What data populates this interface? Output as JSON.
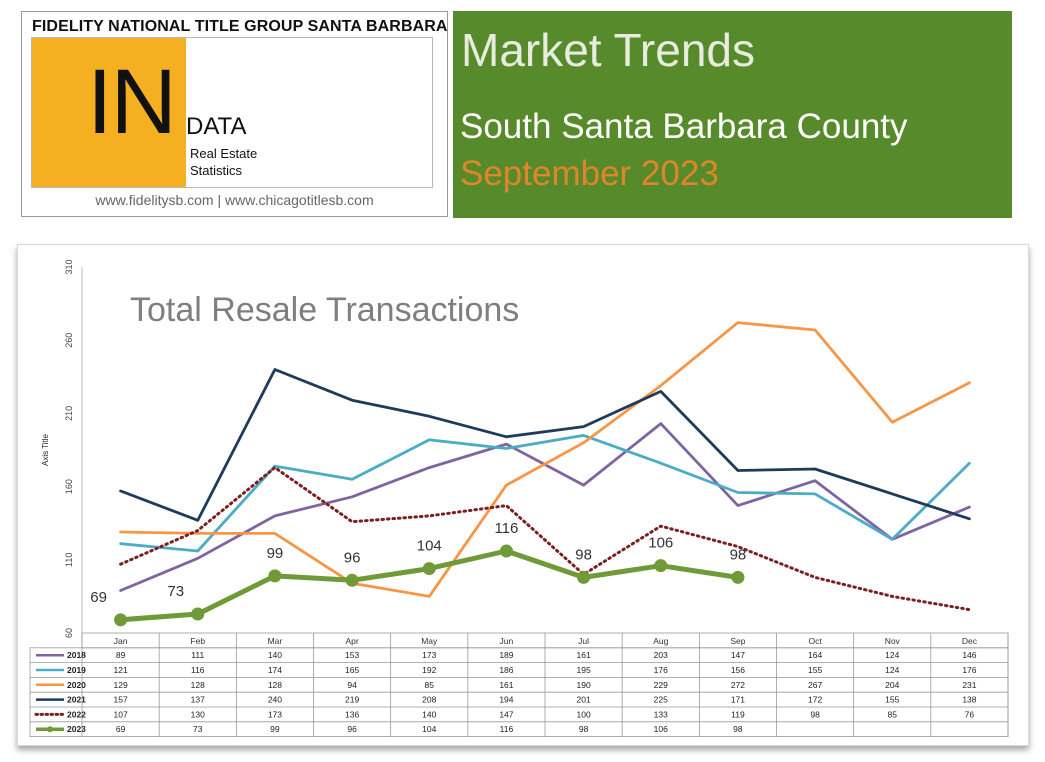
{
  "header": {
    "company": "FIDELITY NATIONAL TITLE GROUP SANTA BARBARA",
    "logo_in": "IN",
    "logo_data": "DATA",
    "logo_sub1": "Real Estate",
    "logo_sub2": "Statistics",
    "urls": "www.fidelitysb.com | www.chicagotitlesb.com",
    "title": "Market Trends",
    "region": "South Santa Barbara County",
    "period": "September 2023"
  },
  "colors": {
    "yellow": "#f5b021",
    "green": "#578a2a",
    "orange_text": "#e0862a"
  },
  "chart_data": {
    "type": "line",
    "title": "Total Resale Transactions",
    "ylabel": "Axis Title",
    "xlabel": "",
    "ylim": [
      60,
      310
    ],
    "yticks": [
      60,
      110,
      160,
      210,
      260,
      310
    ],
    "categories": [
      "Jan",
      "Feb",
      "Mar",
      "Apr",
      "May",
      "Jun",
      "Jul",
      "Aug",
      "Sep",
      "Oct",
      "Nov",
      "Dec"
    ],
    "grid": false,
    "legend": "data-table-below",
    "series": [
      {
        "name": "2018",
        "color": "#8064a2",
        "style": "solid",
        "values": [
          89,
          111,
          140,
          153,
          173,
          189,
          161,
          203,
          147,
          164,
          124,
          146
        ]
      },
      {
        "name": "2019",
        "color": "#4bacc6",
        "style": "solid",
        "values": [
          121,
          116,
          174,
          165,
          192,
          186,
          195,
          176,
          156,
          155,
          124,
          176
        ]
      },
      {
        "name": "2020",
        "color": "#f79646",
        "style": "solid",
        "values": [
          129,
          128,
          128,
          94,
          85,
          161,
          190,
          229,
          272,
          267,
          204,
          231
        ]
      },
      {
        "name": "2021",
        "color": "#1f3b5c",
        "style": "solid",
        "values": [
          157,
          137,
          240,
          219,
          208,
          194,
          201,
          225,
          171,
          172,
          155,
          138
        ]
      },
      {
        "name": "2022",
        "color": "#7b2020",
        "style": "dotted",
        "values": [
          107,
          130,
          173,
          136,
          140,
          147,
          100,
          133,
          119,
          98,
          85,
          76
        ]
      },
      {
        "name": "2023",
        "color": "#6f9a37",
        "style": "bold",
        "values": [
          69,
          73,
          99,
          96,
          104,
          116,
          98,
          106,
          98,
          null,
          null,
          null
        ]
      }
    ]
  }
}
